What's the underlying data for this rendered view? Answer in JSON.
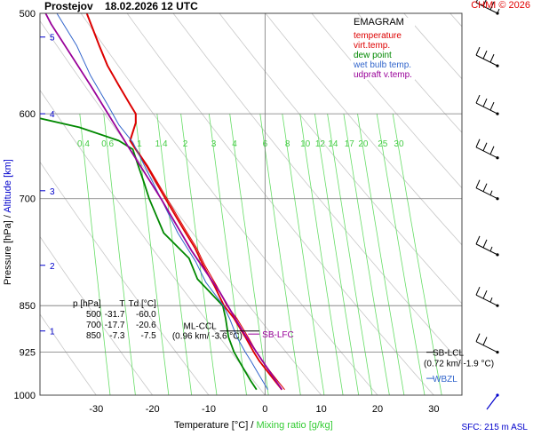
{
  "header": {
    "station": "Prostejov",
    "datetime": "18.02.2026 12 UTC",
    "copyright": "CHMI © 2026"
  },
  "axes": {
    "ylabel_pressure": "Pressure [hPa]",
    "ylabel_separator": " / ",
    "ylabel_altitude": "Altitude [km]",
    "xlabel_temperature": "Temperature [°C]",
    "xlabel_separator": " / ",
    "xlabel_mixing": "Mixing ratio [g/kg]"
  },
  "legend": {
    "title": "EMAGRAM",
    "items": [
      {
        "label": "temperature",
        "color": "#dd0000"
      },
      {
        "label": "virt.temp.",
        "color": "#dd0000"
      },
      {
        "label": "dew point",
        "color": "#008800"
      },
      {
        "label": "wet bulb temp.",
        "color": "#3366cc"
      },
      {
        "label": "udpraft v.temp.",
        "color": "#990099"
      }
    ]
  },
  "surface_note": "SFC: 215 m ASL",
  "level_table": {
    "header": [
      "p [hPa]",
      "T",
      "Td [°C]"
    ],
    "rows": [
      [
        "500",
        "-31.7",
        "-60.0"
      ],
      [
        "700",
        "-17.7",
        "-20.6"
      ],
      [
        "850",
        "-7.3",
        "-7.5"
      ]
    ]
  },
  "annotations": {
    "ml_ccl": "ML-CCL",
    "ml_ccl_detail": "(0.96 km/ -3.6 °C)",
    "sb_lfc": "SB-LFC",
    "sb_lcl": "SB-LCL",
    "sb_lcl_detail": "(0.72 km/ -1.9 °C)",
    "wbzl": "WBZL"
  },
  "chart_data": {
    "type": "line",
    "title": "EMAGRAM",
    "x_axis": {
      "label": "Temperature [°C]",
      "range": [
        -40,
        35
      ],
      "ticks": [
        -30,
        -20,
        -10,
        0,
        10,
        20,
        30
      ]
    },
    "y_axis": {
      "label": "Pressure [hPa]",
      "scale": "log",
      "range": [
        1000,
        500
      ],
      "ticks": [
        500,
        600,
        700,
        850,
        925,
        1000
      ]
    },
    "altitude_ticks_km": [
      {
        "km": 1,
        "p": 890
      },
      {
        "km": 2,
        "p": 790
      },
      {
        "km": 3,
        "p": 690
      },
      {
        "km": 4,
        "p": 600
      },
      {
        "km": 5,
        "p": 522
      }
    ],
    "mixing_ratio_labels": [
      "0.4",
      "0.6",
      "1",
      "1.4",
      "2",
      "3",
      "4",
      "6",
      "8",
      "10",
      "12",
      "14",
      "17",
      "20",
      "25",
      "30"
    ],
    "mixing_ratio_values": [
      0.4,
      0.6,
      1,
      1.4,
      2,
      3,
      4,
      6,
      8,
      10,
      12,
      14,
      17,
      20,
      25,
      30
    ],
    "series": [
      {
        "name": "temperature",
        "color": "#dd0000",
        "points": [
          [
            3,
            990
          ],
          [
            1,
            965
          ],
          [
            -1,
            940
          ],
          [
            -2,
            925
          ],
          [
            -3.5,
            900
          ],
          [
            -5.5,
            870
          ],
          [
            -7.3,
            850
          ],
          [
            -9,
            820
          ],
          [
            -11,
            790
          ],
          [
            -12.5,
            765
          ],
          [
            -14.5,
            740
          ],
          [
            -17.7,
            700
          ],
          [
            -21,
            660
          ],
          [
            -24,
            630
          ],
          [
            -23,
            610
          ],
          [
            -23,
            600
          ],
          [
            -24,
            590
          ],
          [
            -26,
            570
          ],
          [
            -28,
            550
          ],
          [
            -29.5,
            530
          ],
          [
            -31.7,
            500
          ]
        ]
      },
      {
        "name": "virt.temp.",
        "color": "#dd0000",
        "points": [
          [
            3.5,
            990
          ],
          [
            1.5,
            965
          ],
          [
            -0.5,
            940
          ],
          [
            -1.5,
            925
          ],
          [
            -3,
            900
          ],
          [
            -5,
            870
          ],
          [
            -6.8,
            850
          ],
          [
            -8.6,
            820
          ],
          [
            -10.7,
            790
          ],
          [
            -12.2,
            765
          ],
          [
            -14.2,
            740
          ],
          [
            -17.4,
            700
          ],
          [
            -20.8,
            660
          ],
          [
            -23.9,
            630
          ],
          [
            -22.9,
            610
          ],
          [
            -22.9,
            600
          ],
          [
            -23.9,
            590
          ],
          [
            -25.9,
            570
          ],
          [
            -27.9,
            550
          ],
          [
            -29.4,
            530
          ],
          [
            -31.6,
            500
          ]
        ]
      },
      {
        "name": "dew point",
        "color": "#008800",
        "points": [
          [
            -1.5,
            990
          ],
          [
            -2.5,
            975
          ],
          [
            -4,
            950
          ],
          [
            -5.5,
            925
          ],
          [
            -6.5,
            900
          ],
          [
            -7,
            870
          ],
          [
            -7.5,
            850
          ],
          [
            -12,
            810
          ],
          [
            -13.5,
            780
          ],
          [
            -18,
            745
          ],
          [
            -20.6,
            700
          ],
          [
            -21.5,
            680
          ],
          [
            -22.5,
            660
          ],
          [
            -23.5,
            640
          ],
          [
            -26,
            630
          ],
          [
            -33,
            615
          ],
          [
            -40,
            605
          ]
        ]
      },
      {
        "name": "wet bulb temp.",
        "color": "#3366cc",
        "points": [
          [
            0.5,
            990
          ],
          [
            -1,
            965
          ],
          [
            -2.5,
            940
          ],
          [
            -3.5,
            925
          ],
          [
            -5,
            900
          ],
          [
            -6.3,
            870
          ],
          [
            -7.4,
            850
          ],
          [
            -10.5,
            815
          ],
          [
            -12.3,
            785
          ],
          [
            -15.5,
            745
          ],
          [
            -18.5,
            700
          ],
          [
            -21,
            665
          ],
          [
            -23.5,
            632
          ],
          [
            -26,
            612
          ],
          [
            -28,
            590
          ],
          [
            -31,
            560
          ],
          [
            -33.5,
            530
          ],
          [
            -37,
            500
          ]
        ]
      },
      {
        "name": "udpraft v.temp.",
        "color": "#990099",
        "points": [
          [
            3,
            990
          ],
          [
            -1.5,
            925
          ],
          [
            -4,
            890
          ],
          [
            -8,
            830
          ],
          [
            -13,
            770
          ],
          [
            -18.5,
            700
          ],
          [
            -24.5,
            635
          ],
          [
            -31,
            570
          ],
          [
            -38,
            510
          ],
          [
            -39,
            500
          ]
        ]
      }
    ],
    "wind_barbs": [
      {
        "p": 1000,
        "kt": 5
      },
      {
        "p": 925,
        "kt": 20
      },
      {
        "p": 850,
        "kt": 25
      },
      {
        "p": 775,
        "kt": 25
      },
      {
        "p": 700,
        "kt": 25
      },
      {
        "p": 650,
        "kt": 30
      },
      {
        "p": 600,
        "kt": 30
      },
      {
        "p": 550,
        "kt": 30
      },
      {
        "p": 500,
        "kt": 35
      }
    ]
  }
}
